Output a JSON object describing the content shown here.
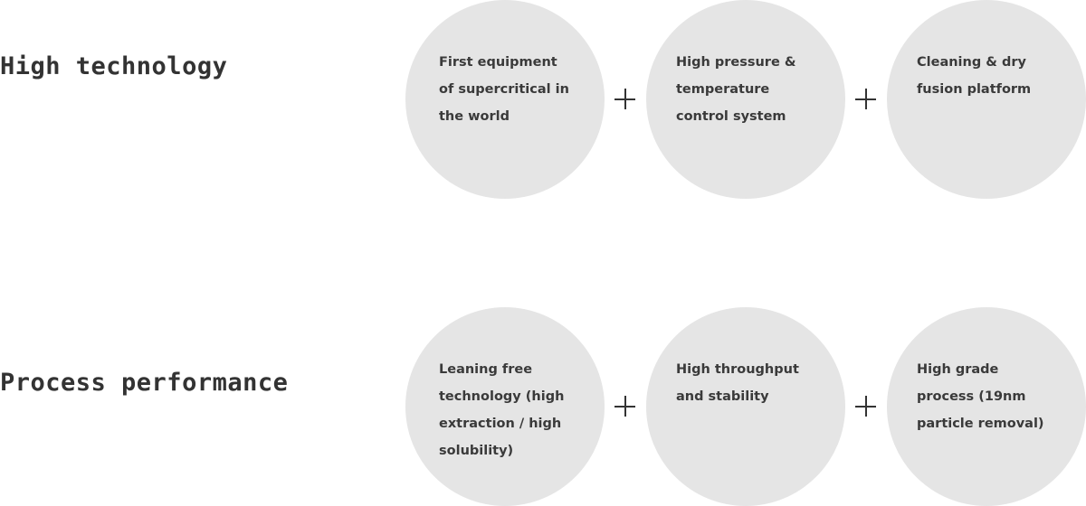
{
  "rows": [
    {
      "title": "High technology",
      "items": [
        "First equipment of supercritical in the world",
        "High pressure & temperature control system",
        "Cleaning & dry fusion platform"
      ]
    },
    {
      "title": "Process performance",
      "items": [
        "Leaning free technology (high extraction / high solubility)",
        "High throughput and stability",
        "High grade process (19nm particle removal)"
      ]
    }
  ],
  "colors": {
    "circle": "#e5e5e5",
    "text": "#333333"
  },
  "icons": {
    "connector": "plus-icon"
  }
}
